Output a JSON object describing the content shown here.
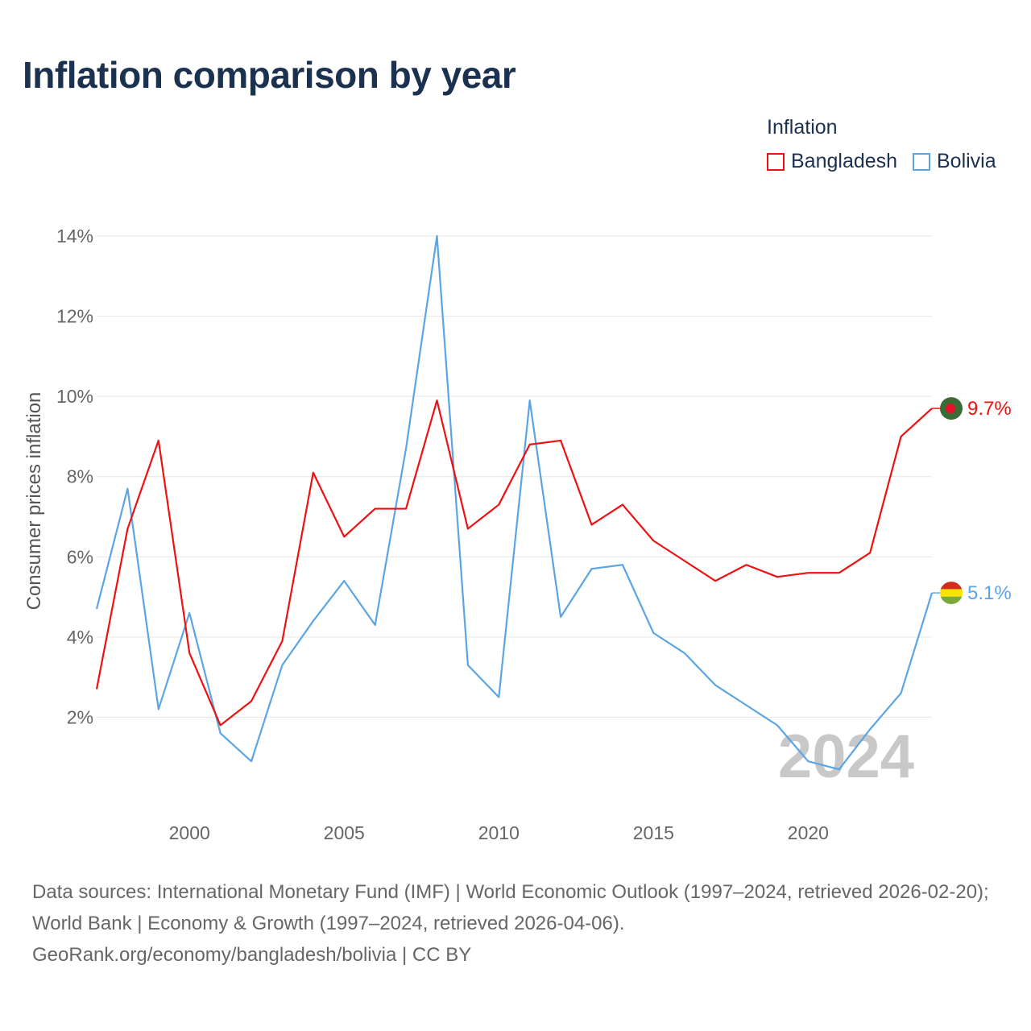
{
  "title": "Inflation comparison by year",
  "legend": {
    "title": "Inflation",
    "items": [
      {
        "label": "Bangladesh",
        "color": "#ee1111"
      },
      {
        "label": "Bolivia",
        "color": "#5ba5e5"
      }
    ]
  },
  "footer": {
    "line1": "Data sources: International Monetary Fund (IMF) | World Economic Outlook (1997–2024, retrieved 2026-02-20); World Bank | Economy & Growth (1997–2024, retrieved 2026-04-06).",
    "line2": "GeoRank.org/economy/bangladesh/bolivia | CC BY"
  },
  "chart_data": {
    "type": "line",
    "title": "Inflation comparison by year",
    "ylabel": "Consumer prices inflation",
    "xlabel": "",
    "year_watermark": "2024",
    "xlim": [
      1997,
      2024
    ],
    "ylim": [
      0,
      14
    ],
    "x_ticks": [
      2000,
      2005,
      2010,
      2015,
      2020
    ],
    "x_tick_labels": [
      "2000",
      "2005",
      "2010",
      "2015",
      "2020"
    ],
    "y_ticks": [
      2,
      4,
      6,
      8,
      10,
      12,
      14
    ],
    "y_tick_labels": [
      "2%",
      "4%",
      "6%",
      "8%",
      "10%",
      "12%",
      "14%"
    ],
    "grid": true,
    "x": [
      1997,
      1998,
      1999,
      2000,
      2001,
      2002,
      2003,
      2004,
      2005,
      2006,
      2007,
      2008,
      2009,
      2010,
      2011,
      2012,
      2013,
      2014,
      2015,
      2016,
      2017,
      2018,
      2019,
      2020,
      2021,
      2022,
      2023,
      2024
    ],
    "series": [
      {
        "name": "Bangladesh",
        "color": "#ee1111",
        "end_label": "9.7%",
        "flag": "bangladesh",
        "values": [
          2.7,
          6.7,
          8.9,
          3.6,
          1.8,
          2.4,
          3.9,
          8.1,
          6.5,
          7.2,
          7.2,
          9.9,
          6.7,
          7.3,
          8.8,
          8.9,
          6.8,
          7.3,
          6.4,
          5.9,
          5.4,
          5.8,
          5.5,
          5.6,
          5.6,
          6.1,
          9.0,
          9.7
        ]
      },
      {
        "name": "Bolivia",
        "color": "#5ba5e5",
        "end_label": "5.1%",
        "flag": "bolivia",
        "values": [
          4.7,
          7.7,
          2.2,
          4.6,
          1.6,
          0.9,
          3.3,
          4.4,
          5.4,
          4.3,
          8.7,
          14.0,
          3.3,
          2.5,
          9.9,
          4.5,
          5.7,
          5.8,
          4.1,
          3.6,
          2.8,
          2.3,
          1.8,
          0.9,
          0.7,
          1.7,
          2.6,
          5.1
        ]
      }
    ]
  }
}
